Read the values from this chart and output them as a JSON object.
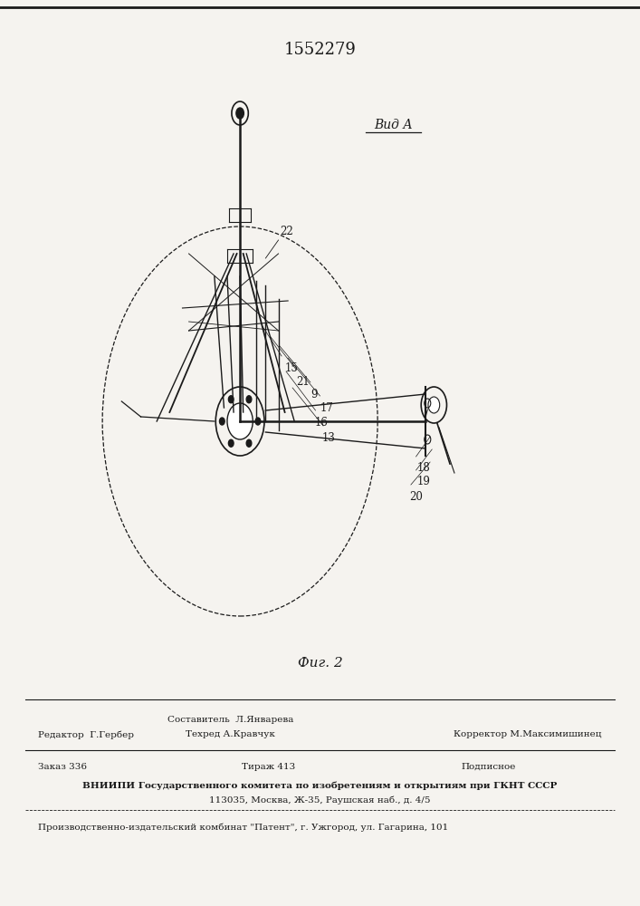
{
  "patent_number": "1552279",
  "fig_label": "Фиг. 2",
  "view_label": "Вид А",
  "bg_color": "#f5f3ef",
  "line_color": "#1a1a1a",
  "footer": {
    "line1_left": "Редактор  Г.Гербер",
    "line1_center_top": "Составитель  Л.Январева",
    "line1_center_bot": "Техред А.Кравчук",
    "line1_right": "Корректор М.Максимишинец",
    "line2_left": "Заказ 336",
    "line2_center": "Тираж 413",
    "line2_right": "Подписное",
    "line3": "ВНИИПИ Государственного комитета по изобретениям и открытиям при ГКНТ СССР",
    "line4": "113035, Москва, Ж-35, Раушская наб., д. 4/5",
    "line6": "Производственно-издательский комбинат \"Патент\", г. Ужгород, ул. Гагарина, 101"
  }
}
